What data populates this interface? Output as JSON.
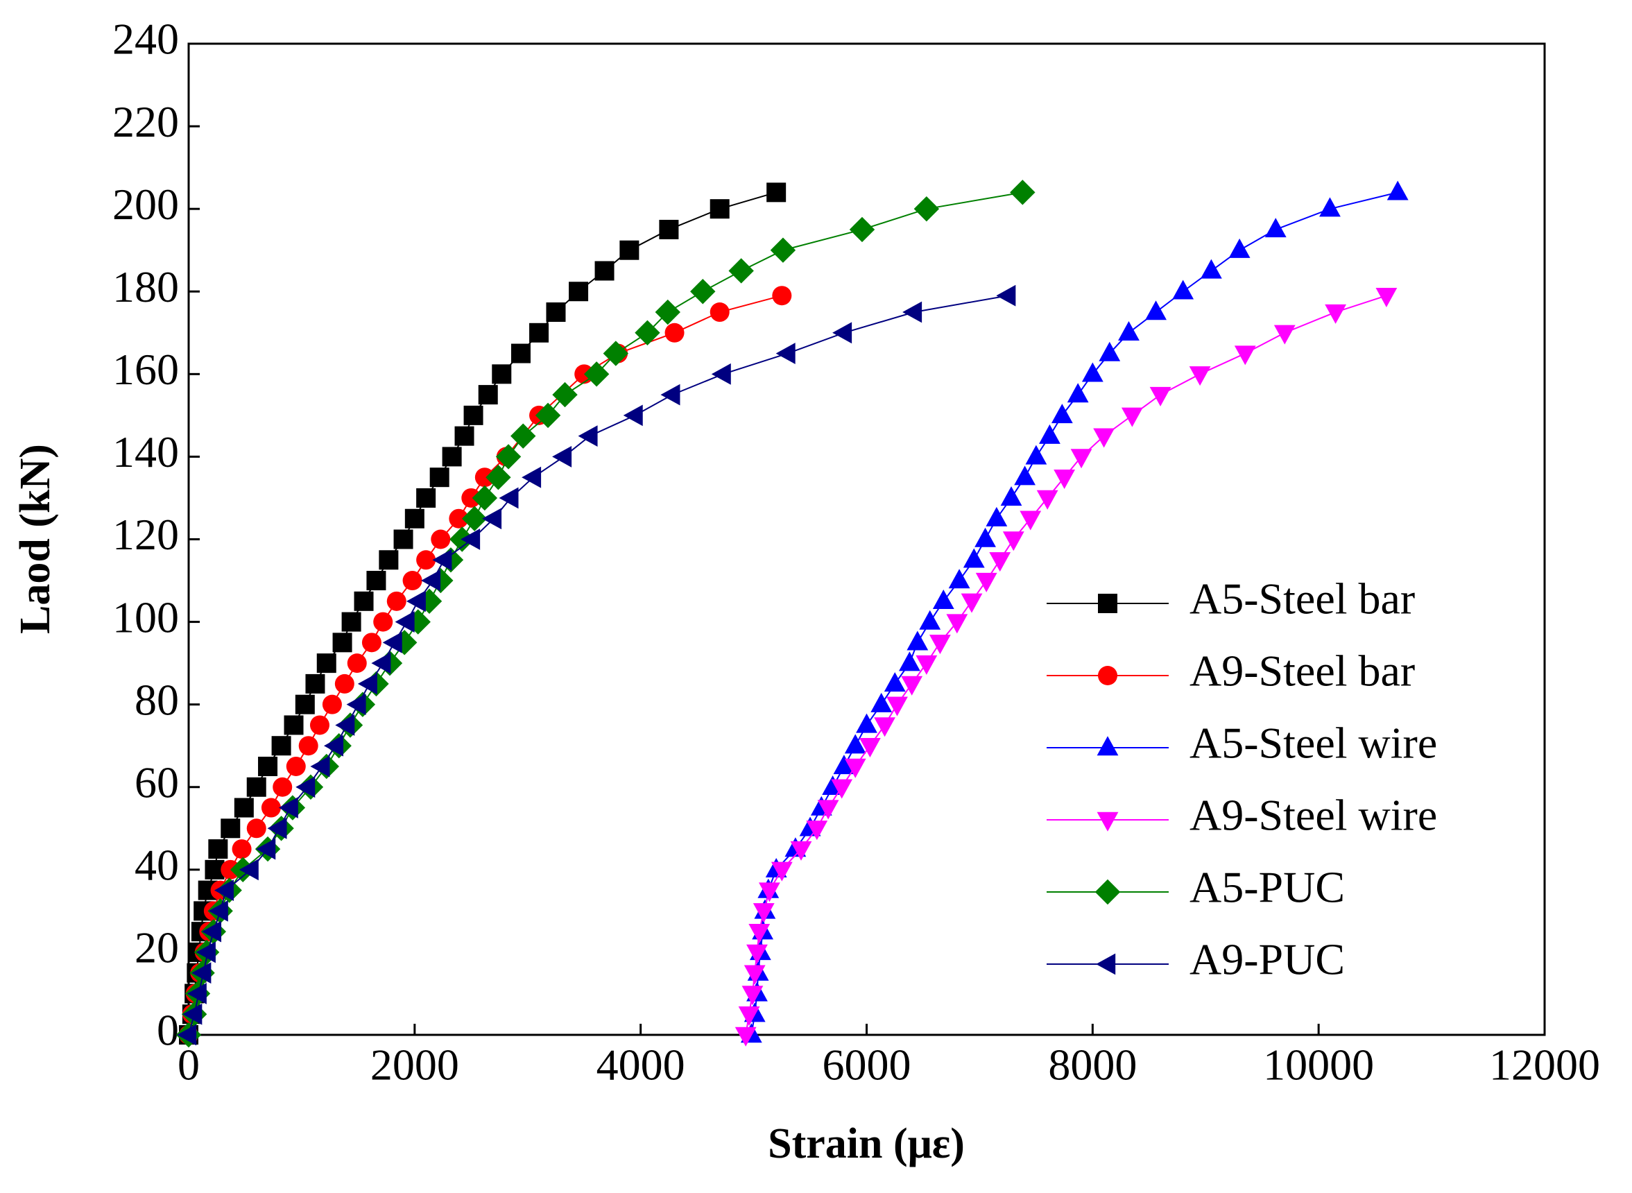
{
  "chart_data": {
    "type": "line",
    "xlabel": "Strain (με)",
    "ylabel": "Laod (kN)",
    "xlim": [
      0,
      12000
    ],
    "xticks": [
      0,
      2000,
      4000,
      6000,
      8000,
      10000,
      12000
    ],
    "ylim": [
      0,
      240
    ],
    "yticks": [
      0,
      20,
      40,
      60,
      80,
      100,
      120,
      140,
      160,
      180,
      200,
      220,
      240
    ],
    "legend": "right",
    "series": [
      {
        "name": "A5-Steel bar",
        "color": "#000000",
        "marker": "square",
        "x": [
          0,
          30,
          50,
          70,
          90,
          110,
          130,
          170,
          230,
          260,
          370,
          490,
          600,
          700,
          820,
          930,
          1030,
          1120,
          1220,
          1360,
          1440,
          1550,
          1660,
          1770,
          1900,
          2000,
          2100,
          2220,
          2330,
          2440,
          2520,
          2650,
          2770,
          2940,
          3100,
          3250,
          3450,
          3680,
          3900,
          4250,
          4700,
          5200
        ],
        "values": [
          0,
          5,
          10,
          15,
          20,
          25,
          30,
          35,
          40,
          45,
          50,
          55,
          60,
          65,
          70,
          75,
          80,
          85,
          90,
          95,
          100,
          105,
          110,
          115,
          120,
          125,
          130,
          135,
          140,
          145,
          150,
          155,
          160,
          165,
          170,
          175,
          180,
          185,
          190,
          195,
          200,
          204
        ]
      },
      {
        "name": "A9-Steel bar",
        "color": "#ff0000",
        "marker": "circle",
        "x": [
          0,
          30,
          60,
          100,
          140,
          180,
          220,
          280,
          370,
          470,
          600,
          730,
          830,
          950,
          1060,
          1160,
          1270,
          1380,
          1490,
          1620,
          1720,
          1840,
          1980,
          2100,
          2230,
          2390,
          2500,
          2620,
          2810,
          3100,
          3500,
          3800,
          4300,
          4700,
          5250
        ],
        "values": [
          0,
          5,
          10,
          15,
          20,
          25,
          30,
          35,
          40,
          45,
          50,
          55,
          60,
          65,
          70,
          75,
          80,
          85,
          90,
          95,
          100,
          105,
          110,
          115,
          120,
          125,
          130,
          135,
          140,
          150,
          160,
          165,
          170,
          175,
          179
        ]
      },
      {
        "name": "A5-Steel wire",
        "color": "#0000ff",
        "marker": "triangle-up",
        "x": [
          4980,
          5010,
          5030,
          5040,
          5060,
          5080,
          5100,
          5130,
          5200,
          5370,
          5500,
          5600,
          5700,
          5800,
          5900,
          6000,
          6130,
          6250,
          6380,
          6450,
          6560,
          6680,
          6820,
          6950,
          7050,
          7150,
          7280,
          7400,
          7500,
          7620,
          7730,
          7870,
          8000,
          8150,
          8320,
          8560,
          8800,
          9050,
          9300,
          9620,
          10100,
          10700
        ],
        "values": [
          0,
          5,
          10,
          15,
          20,
          25,
          30,
          35,
          40,
          45,
          50,
          55,
          60,
          65,
          70,
          75,
          80,
          85,
          90,
          95,
          100,
          105,
          110,
          115,
          120,
          125,
          130,
          135,
          140,
          145,
          150,
          155,
          160,
          165,
          170,
          175,
          180,
          185,
          190,
          195,
          200,
          204
        ]
      },
      {
        "name": "A9-Steel wire",
        "color": "#ff00ff",
        "marker": "triangle-down",
        "x": [
          4930,
          4960,
          4990,
          5010,
          5030,
          5050,
          5090,
          5140,
          5250,
          5420,
          5560,
          5660,
          5780,
          5900,
          6030,
          6160,
          6270,
          6400,
          6530,
          6650,
          6800,
          6930,
          7060,
          7180,
          7300,
          7450,
          7600,
          7750,
          7900,
          8100,
          8350,
          8600,
          8950,
          9350,
          9700,
          10150,
          10600
        ],
        "values": [
          0,
          5,
          10,
          15,
          20,
          25,
          30,
          35,
          40,
          45,
          50,
          55,
          60,
          65,
          70,
          75,
          80,
          85,
          90,
          95,
          100,
          105,
          110,
          115,
          120,
          125,
          130,
          135,
          140,
          145,
          150,
          155,
          160,
          165,
          170,
          175,
          179
        ]
      },
      {
        "name": "A5-PUC",
        "color": "#008000",
        "marker": "diamond",
        "x": [
          0,
          50,
          80,
          120,
          160,
          220,
          280,
          360,
          480,
          700,
          820,
          920,
          1080,
          1220,
          1330,
          1430,
          1540,
          1660,
          1780,
          1910,
          2030,
          2130,
          2230,
          2320,
          2420,
          2530,
          2620,
          2740,
          2830,
          2960,
          3180,
          3330,
          3610,
          3780,
          4060,
          4240,
          4550,
          4890,
          5260,
          5960,
          6530,
          7380
        ],
        "values": [
          0,
          5,
          10,
          15,
          20,
          25,
          30,
          35,
          40,
          45,
          50,
          55,
          60,
          65,
          70,
          75,
          80,
          85,
          90,
          95,
          100,
          105,
          110,
          115,
          120,
          125,
          130,
          135,
          140,
          145,
          150,
          155,
          160,
          165,
          170,
          175,
          180,
          185,
          190,
          195,
          200,
          204
        ]
      },
      {
        "name": "A9-PUC",
        "color": "#000080",
        "marker": "triangle-left",
        "x": [
          0,
          50,
          90,
          130,
          170,
          220,
          280,
          330,
          550,
          700,
          800,
          900,
          1050,
          1180,
          1300,
          1400,
          1500,
          1600,
          1720,
          1820,
          1930,
          2030,
          2160,
          2260,
          2510,
          2700,
          2850,
          3050,
          3320,
          3550,
          3950,
          4280,
          4730,
          5300,
          5800,
          6420,
          7250
        ],
        "values": [
          0,
          5,
          10,
          15,
          20,
          25,
          30,
          35,
          40,
          45,
          50,
          55,
          60,
          65,
          70,
          75,
          80,
          85,
          90,
          95,
          100,
          105,
          110,
          115,
          120,
          125,
          130,
          135,
          140,
          145,
          150,
          155,
          160,
          165,
          170,
          175,
          179
        ]
      }
    ]
  }
}
